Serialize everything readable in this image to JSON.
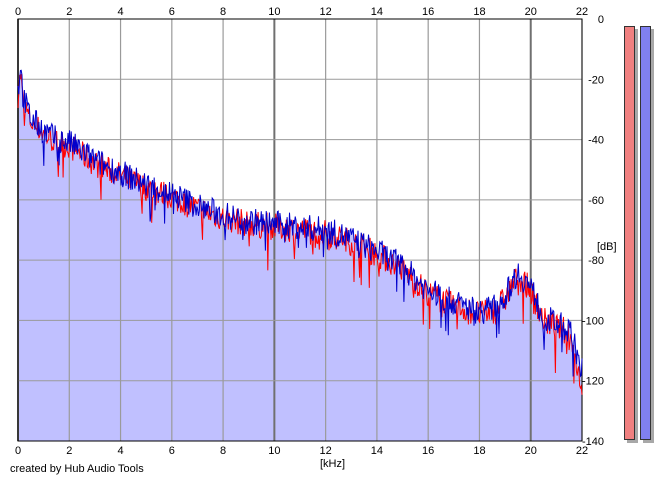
{
  "window": {
    "credit": "created by Hub Audio Tools"
  },
  "chart_data": {
    "type": "area",
    "title": "",
    "xlabel": "[kHz]",
    "ylabel": "[dB]",
    "xlim": [
      0,
      22
    ],
    "ylim": [
      -140,
      0
    ],
    "x_ticks": [
      "0",
      "2",
      "4",
      "6",
      "8",
      "10",
      "12",
      "14",
      "16",
      "18",
      "20",
      "22"
    ],
    "y_ticks": [
      "0",
      "-20",
      "-40",
      "-60",
      "-80",
      "-100",
      "-120",
      "-140"
    ],
    "grid": true,
    "x_ticks_on_top_and_bottom": true,
    "series": [
      {
        "channel": "left",
        "color": "#ff0000",
        "x": [
          0,
          0.1,
          0.2,
          0.5,
          1,
          1.5,
          2,
          2.5,
          3,
          3.5,
          4,
          5,
          6,
          7,
          8,
          9,
          10,
          11,
          12,
          13,
          14,
          15,
          16,
          17,
          18,
          18.5,
          19,
          19.3,
          19.5,
          20,
          20.5,
          21,
          21.5,
          22
        ],
        "y": [
          -25,
          -18,
          -28,
          -34,
          -38,
          -41,
          -42,
          -45,
          -48,
          -50,
          -52,
          -56,
          -59,
          -63,
          -66,
          -68,
          -69,
          -70,
          -71,
          -74,
          -78,
          -83,
          -91,
          -95,
          -98,
          -97,
          -93,
          -88,
          -85,
          -90,
          -100,
          -102,
          -104,
          -122
        ]
      },
      {
        "channel": "right",
        "color": "#0000cc",
        "x": [
          0,
          0.1,
          0.2,
          0.5,
          1,
          1.5,
          2,
          2.5,
          3,
          3.5,
          4,
          5,
          6,
          7,
          8,
          9,
          10,
          11,
          12,
          13,
          14,
          15,
          16,
          17,
          18,
          18.5,
          19,
          19.3,
          19.5,
          20,
          20.5,
          21,
          21.5,
          22
        ],
        "y": [
          -24,
          -15,
          -26,
          -33,
          -37,
          -40,
          -41,
          -44,
          -47,
          -49,
          -51,
          -55,
          -58,
          -62,
          -65,
          -67,
          -68,
          -69,
          -70,
          -73,
          -77,
          -82,
          -90,
          -94,
          -97,
          -96,
          -92,
          -87,
          -84,
          -89,
          -99,
          -101,
          -103,
          -116
        ]
      }
    ],
    "fill_color": "#c0c0ff"
  },
  "meters": [
    {
      "channel": "left",
      "color": "#f08080",
      "level": 1.0
    },
    {
      "channel": "right",
      "color": "#8080f0",
      "level": 1.0
    }
  ]
}
